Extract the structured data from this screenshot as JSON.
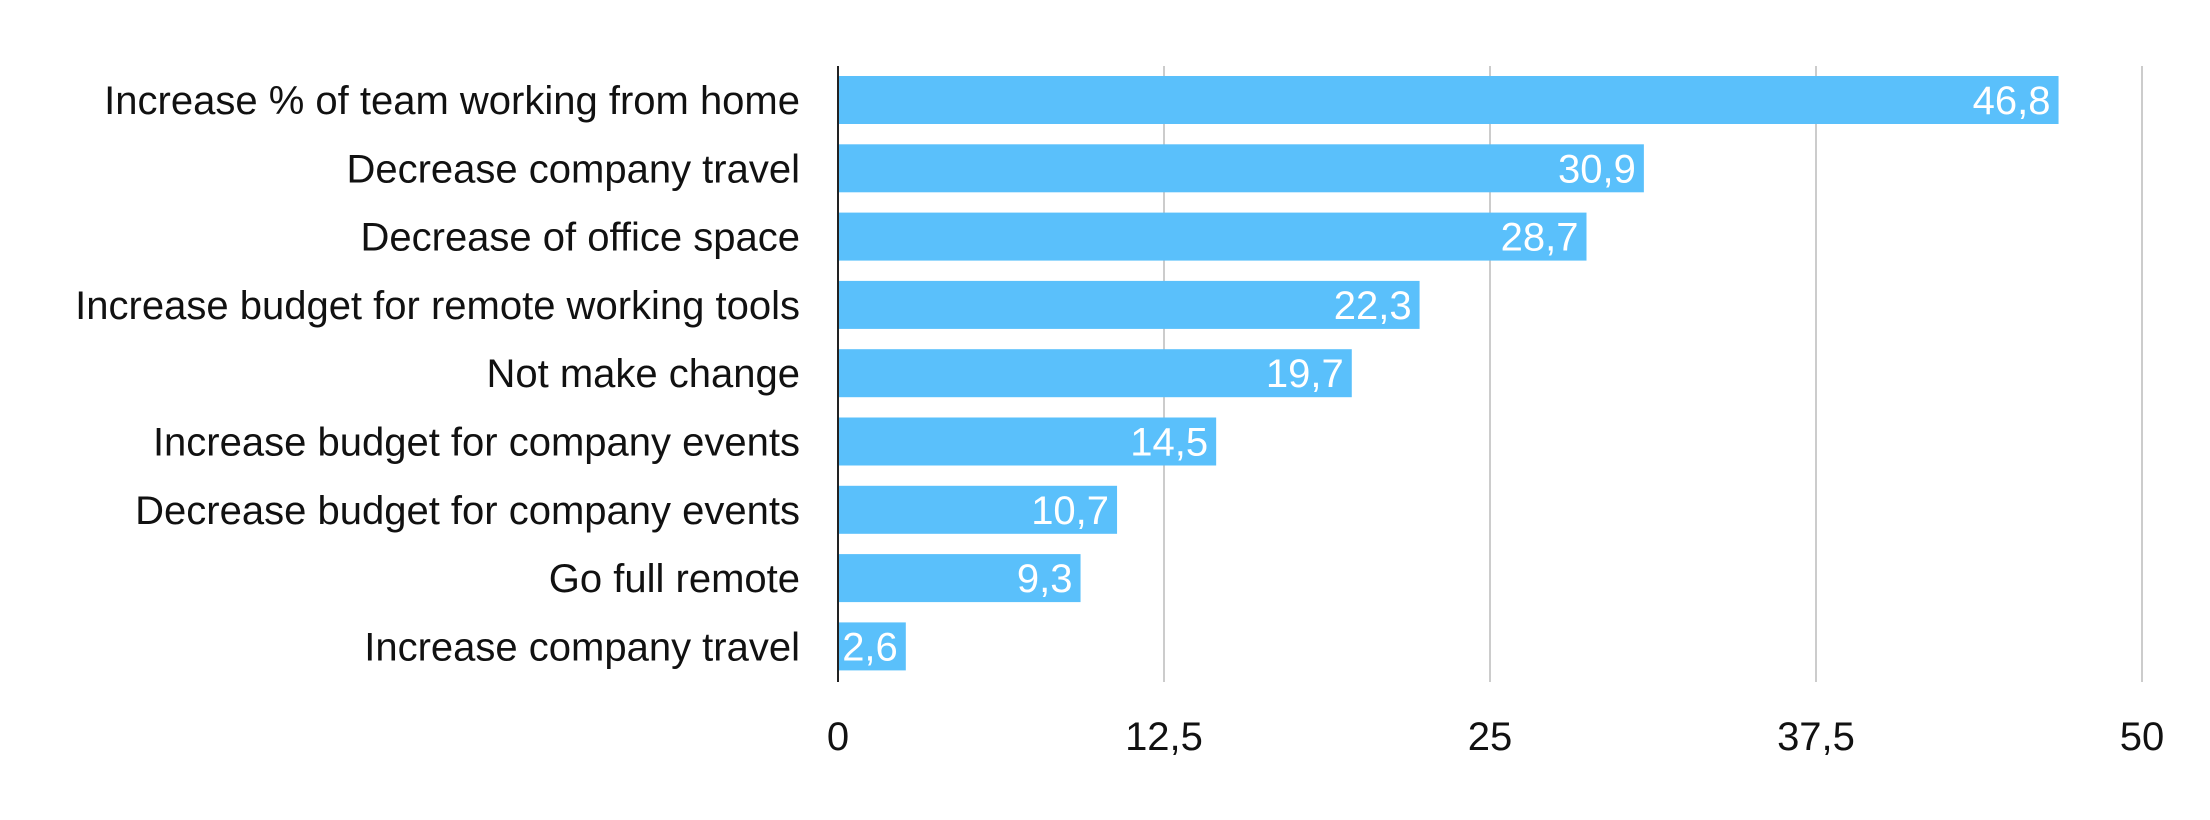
{
  "chart_data": {
    "type": "bar",
    "orientation": "horizontal",
    "categories": [
      "Increase % of team working from home",
      "Decrease company travel",
      "Decrease of office space",
      "Increase budget for remote working tools",
      "Not make change",
      "Increase budget for company events",
      "Decrease budget for company events",
      "Go full remote",
      "Increase company travel"
    ],
    "values": [
      46.8,
      30.9,
      28.7,
      22.3,
      19.7,
      14.5,
      10.7,
      9.3,
      2.6
    ],
    "data_labels": [
      "46,8",
      "30,9",
      "28,7",
      "22,3",
      "19,7",
      "14,5",
      "10,7",
      "9,3",
      "2,6"
    ],
    "xlim": [
      0,
      50
    ],
    "x_ticks": [
      0,
      12.5,
      25,
      37.5,
      50
    ],
    "x_tick_labels": [
      "0",
      "12,5",
      "25",
      "37,5",
      "50"
    ],
    "grid": "vertical",
    "legend": "none",
    "bar_color": "#5ac0fb"
  }
}
